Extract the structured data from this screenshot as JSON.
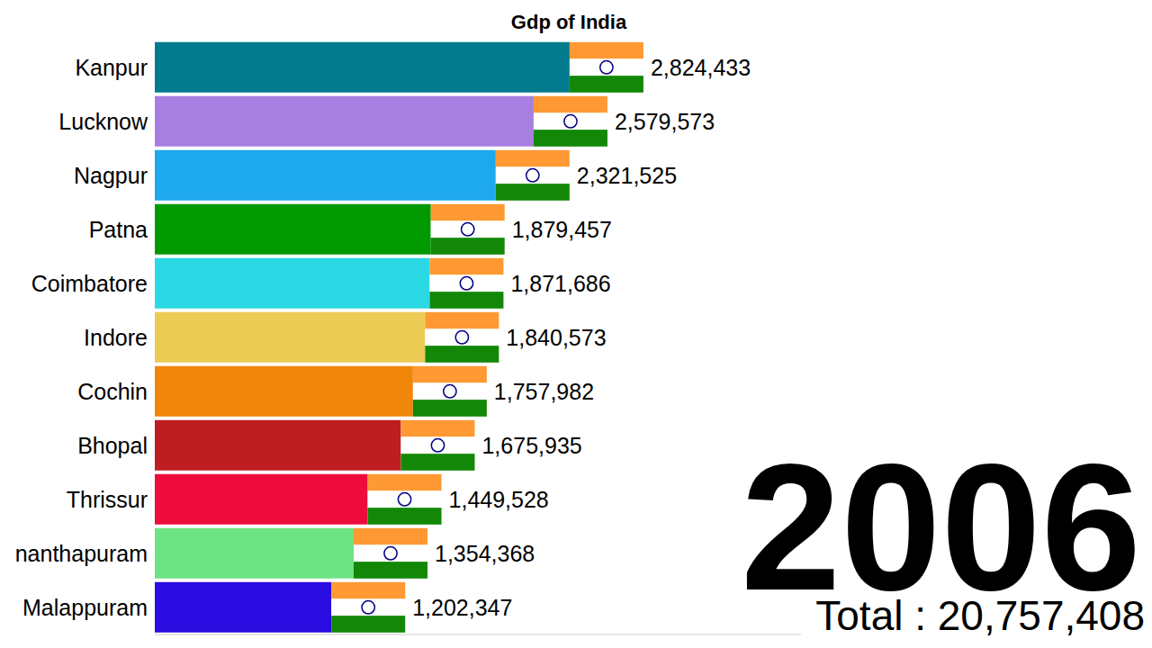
{
  "chart_data": {
    "type": "bar",
    "title": "Gdp of India",
    "orientation": "horizontal",
    "categories": [
      "Kanpur",
      "Lucknow",
      "Nagpur",
      "Patna",
      "Coimbatore",
      "Indore",
      "Cochin",
      "Bhopal",
      "Thrissur",
      "nanthapuram",
      "Malappuram"
    ],
    "values": [
      2824433,
      2579573,
      2321525,
      1879457,
      1871686,
      1840573,
      1757982,
      1675935,
      1449528,
      1354368,
      1202347
    ],
    "value_labels": [
      "2,824,433",
      "2,579,573",
      "2,321,525",
      "1,879,457",
      "1,871,686",
      "1,840,573",
      "1,757,982",
      "1,675,935",
      "1,449,528",
      "1,354,368",
      "1,202,347"
    ],
    "colors": [
      "#027b8e",
      "#a77fe0",
      "#1ea8ee",
      "#009a00",
      "#2ad9e3",
      "#eccb55",
      "#f0860a",
      "#be1e22",
      "#ee0c3c",
      "#6ee384",
      "#2a0ce0"
    ],
    "xlim": [
      0,
      4400000
    ],
    "data_labels": true,
    "tick_labels": "y",
    "grid": false,
    "annotations": [
      "2006",
      "Total : 20,757,408"
    ]
  }
}
